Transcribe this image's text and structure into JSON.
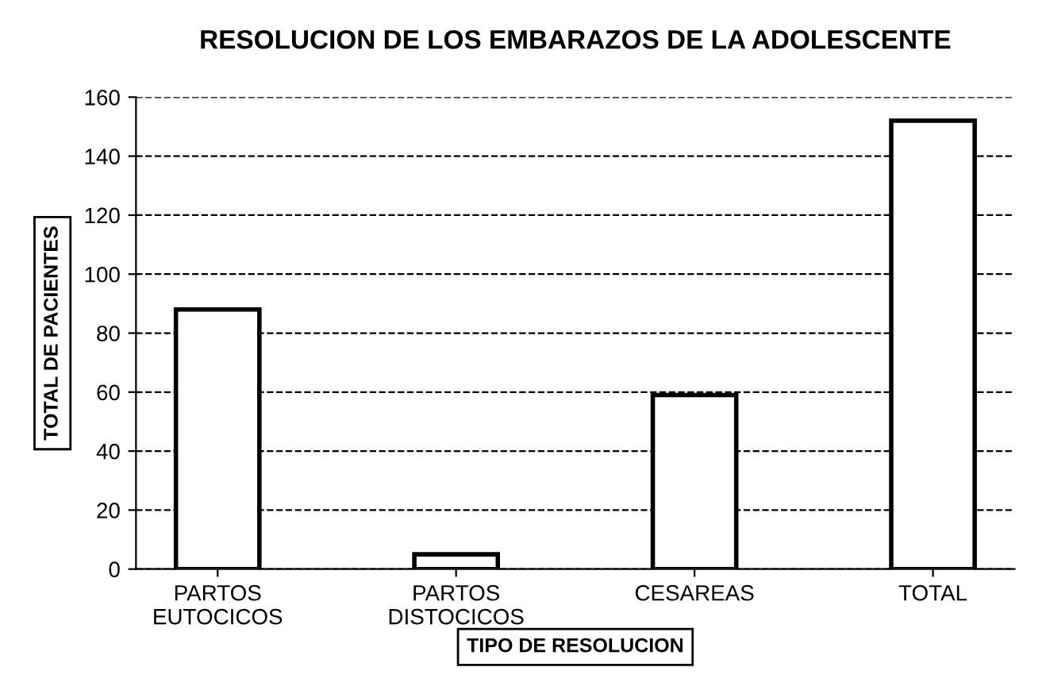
{
  "chart_data": {
    "type": "bar",
    "title": "RESOLUCION DE LOS EMBARAZOS DE LA ADOLESCENTE",
    "xlabel": "TIPO DE RESOLUCION",
    "ylabel": "TOTAL DE PACIENTES",
    "categories": [
      "PARTOS\nEUTOCICOS",
      "PARTOS\nDISTOCICOS",
      "CESAREAS",
      "TOTAL"
    ],
    "values": [
      88,
      5,
      59,
      152
    ],
    "color": "#ffffff",
    "ylim": [
      0,
      160
    ],
    "yticks": [
      0,
      20,
      40,
      60,
      80,
      100,
      120,
      140,
      160
    ],
    "grid": "y",
    "legend": false
  }
}
